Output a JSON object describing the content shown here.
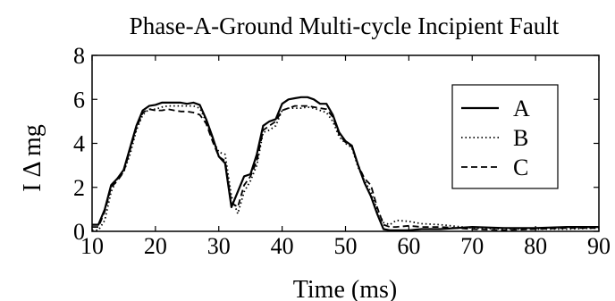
{
  "chart_data": {
    "type": "line",
    "title": "Phase-A-Ground Multi-cycle Incipient Fault",
    "xlabel": "Time (ms)",
    "ylabel": "I Δ mg",
    "xlim": [
      10,
      90
    ],
    "ylim": [
      0,
      8
    ],
    "xticks": [
      "10",
      "20",
      "30",
      "40",
      "50",
      "60",
      "70",
      "80",
      "90"
    ],
    "yticks": [
      "0",
      "2",
      "4",
      "6",
      "8"
    ],
    "grid": false,
    "legend_position": "top-right",
    "series": [
      {
        "name": "A",
        "style": "solid",
        "x": [
          10,
          11,
          12,
          13,
          14,
          15,
          16,
          17,
          18,
          19,
          20,
          21,
          22,
          23,
          24,
          25,
          26,
          27,
          28,
          29,
          30,
          31,
          32,
          33,
          34,
          35,
          36,
          37,
          38,
          39,
          40,
          41,
          42,
          43,
          44,
          45,
          46,
          47,
          48,
          49,
          50,
          51,
          52,
          53,
          54,
          55,
          56,
          57,
          58,
          60,
          62,
          65,
          70,
          75,
          80,
          85,
          90
        ],
        "y": [
          0.3,
          0.3,
          1.0,
          2.1,
          2.4,
          2.8,
          3.8,
          4.8,
          5.5,
          5.7,
          5.75,
          5.85,
          5.85,
          5.85,
          5.85,
          5.8,
          5.85,
          5.75,
          5.1,
          4.3,
          3.4,
          3.1,
          1.1,
          1.8,
          2.5,
          2.6,
          3.5,
          4.8,
          5.0,
          5.1,
          5.8,
          6.0,
          6.05,
          6.1,
          6.1,
          6.0,
          5.8,
          5.8,
          5.3,
          4.5,
          4.1,
          3.9,
          3.0,
          2.2,
          1.6,
          0.8,
          0.1,
          0.05,
          0.05,
          0.05,
          0.1,
          0.1,
          0.2,
          0.15,
          0.15,
          0.2,
          0.2
        ]
      },
      {
        "name": "B",
        "style": "dotted",
        "x": [
          10,
          11,
          12,
          13,
          14,
          15,
          16,
          17,
          18,
          19,
          20,
          21,
          22,
          23,
          24,
          25,
          26,
          27,
          28,
          29,
          30,
          31,
          32,
          33,
          34,
          35,
          36,
          37,
          38,
          39,
          40,
          41,
          42,
          43,
          44,
          45,
          46,
          47,
          48,
          49,
          50,
          51,
          52,
          53,
          54,
          55,
          56,
          57,
          58,
          60,
          62,
          65,
          70,
          75,
          80,
          85,
          90
        ],
        "y": [
          0.05,
          0.05,
          0.5,
          1.8,
          2.4,
          2.7,
          3.5,
          4.6,
          5.3,
          5.55,
          5.55,
          5.65,
          5.7,
          5.7,
          5.7,
          5.7,
          5.7,
          5.6,
          5.0,
          4.2,
          3.6,
          3.5,
          1.6,
          0.8,
          1.8,
          2.3,
          3.0,
          4.5,
          4.6,
          4.8,
          5.5,
          5.6,
          5.6,
          5.6,
          5.65,
          5.6,
          5.5,
          5.4,
          5.0,
          4.3,
          4.0,
          3.8,
          2.9,
          2.3,
          1.8,
          1.0,
          0.4,
          0.3,
          0.5,
          0.45,
          0.35,
          0.3,
          0.15,
          0.1,
          0.1,
          0.1,
          0.15
        ]
      },
      {
        "name": "C",
        "style": "dashed",
        "x": [
          10,
          11,
          12,
          13,
          14,
          15,
          16,
          17,
          18,
          19,
          20,
          21,
          22,
          23,
          24,
          25,
          26,
          27,
          28,
          29,
          30,
          31,
          32,
          33,
          34,
          35,
          36,
          37,
          38,
          39,
          40,
          41,
          42,
          43,
          44,
          45,
          46,
          47,
          48,
          49,
          50,
          51,
          52,
          53,
          54,
          55,
          56,
          57,
          58,
          60,
          62,
          65,
          70,
          75,
          80,
          85,
          90
        ],
        "y": [
          0.2,
          0.2,
          0.9,
          2.0,
          2.3,
          2.7,
          3.7,
          4.7,
          5.4,
          5.55,
          5.5,
          5.5,
          5.55,
          5.5,
          5.45,
          5.45,
          5.4,
          5.3,
          4.9,
          4.1,
          3.4,
          3.2,
          1.3,
          1.1,
          2.1,
          2.5,
          3.2,
          4.6,
          4.8,
          5.0,
          5.5,
          5.6,
          5.7,
          5.7,
          5.7,
          5.65,
          5.6,
          5.55,
          5.2,
          4.4,
          4.05,
          3.85,
          3.0,
          2.4,
          2.1,
          1.1,
          0.3,
          0.2,
          0.2,
          0.25,
          0.2,
          0.2,
          0.1,
          0.05,
          0.1,
          0.15,
          0.15
        ]
      }
    ]
  }
}
